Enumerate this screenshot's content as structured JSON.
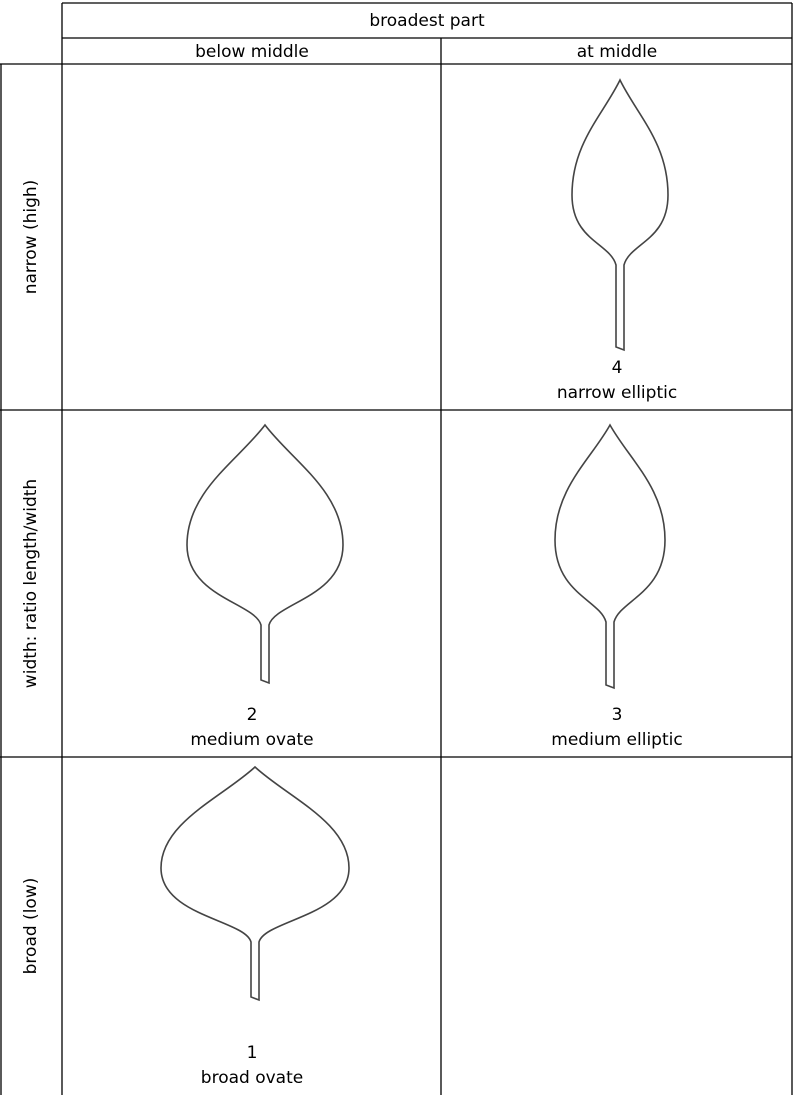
{
  "header": {
    "group": "broadest part",
    "columns": [
      "below middle",
      "at middle"
    ]
  },
  "rows": [
    {
      "label": "narrow (high)",
      "cells": [
        null,
        {
          "number": 4,
          "name": "narrow elliptic"
        }
      ]
    },
    {
      "label": "width: ratio length/width",
      "cells": [
        {
          "number": 2,
          "name": "medium ovate"
        },
        {
          "number": 3,
          "name": "medium elliptic"
        }
      ]
    },
    {
      "label": "broad (low)",
      "cells": [
        {
          "number": 1,
          "name": "broad ovate"
        },
        null
      ]
    }
  ]
}
